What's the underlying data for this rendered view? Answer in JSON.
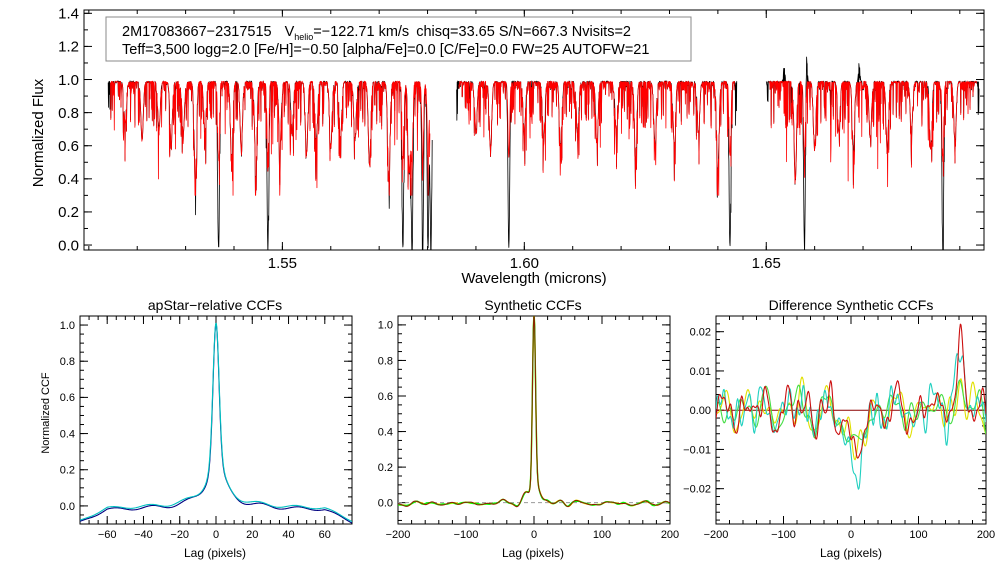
{
  "chart_data": [
    {
      "type": "line",
      "panel": "spectrum",
      "xlabel": "Wavelength (microns)",
      "ylabel": "Normalized Flux",
      "xlim": [
        1.509,
        1.695
      ],
      "ylim": [
        -0.03,
        1.42
      ],
      "xticks": [
        1.55,
        1.6,
        1.65
      ],
      "xtick_labels": [
        "1.55",
        "1.60",
        "1.65"
      ],
      "yticks": [
        0.0,
        0.2,
        0.4,
        0.6,
        0.8,
        1.0,
        1.2,
        1.4
      ],
      "ytick_labels": [
        "0.0",
        "0.2",
        "0.4",
        "0.6",
        "0.8",
        "1.0",
        "1.2",
        "1.4"
      ],
      "annotation_line1": {
        "star": "2M17083667−2317515",
        "v_label": "V",
        "v_sub": "helio",
        "v_value": "=−122.71 km/s",
        "rest": "chisq=33.65  S/N=667.3  Nvisits=2"
      },
      "annotation_line2": "Teff=3,500 logg=2.0 [Fe/H]=−0.50 [alpha/Fe]=0.0 [C/Fe]=0.0 FW=25 AUTOFW=21",
      "series": [
        {
          "name": "observed",
          "color": "#000000"
        },
        {
          "name": "model",
          "color": "#ff0000"
        }
      ],
      "chips": [
        [
          1.514,
          1.581
        ],
        [
          1.586,
          1.644
        ],
        [
          1.65,
          1.694
        ]
      ],
      "absorption_lines": [
        [
          1.5175,
          0.25
        ],
        [
          1.521,
          0.35
        ],
        [
          1.5245,
          0.28
        ],
        [
          1.527,
          0.38
        ],
        [
          1.5295,
          0.32
        ],
        [
          1.532,
          0.55
        ],
        [
          1.534,
          0.3
        ],
        [
          1.5368,
          1.0
        ],
        [
          1.5395,
          0.45
        ],
        [
          1.5415,
          0.4
        ],
        [
          1.5445,
          0.5
        ],
        [
          1.547,
          1.0
        ],
        [
          1.5495,
          0.38
        ],
        [
          1.552,
          0.3
        ],
        [
          1.555,
          0.42
        ],
        [
          1.557,
          0.35
        ],
        [
          1.56,
          0.4
        ],
        [
          1.562,
          0.34
        ],
        [
          1.565,
          0.35
        ],
        [
          1.568,
          0.5
        ],
        [
          1.572,
          0.58
        ],
        [
          1.5749,
          1.0
        ],
        [
          1.5762,
          0.55
        ],
        [
          1.5768,
          1.0
        ],
        [
          1.579,
          1.0
        ],
        [
          1.5801,
          1.0
        ],
        [
          1.5807,
          1.0
        ],
        [
          1.59,
          0.3
        ],
        [
          1.593,
          0.4
        ],
        [
          1.5968,
          1.0
        ],
        [
          1.6,
          0.3
        ],
        [
          1.604,
          0.34
        ],
        [
          1.6075,
          0.38
        ],
        [
          1.611,
          0.3
        ],
        [
          1.615,
          0.35
        ],
        [
          1.619,
          0.3
        ],
        [
          1.623,
          0.42
        ],
        [
          1.627,
          0.36
        ],
        [
          1.631,
          0.38
        ],
        [
          1.636,
          0.3
        ],
        [
          1.64,
          0.52
        ],
        [
          1.6425,
          1.0
        ],
        [
          1.656,
          0.58
        ],
        [
          1.6579,
          1.0
        ],
        [
          1.66,
          0.4
        ],
        [
          1.665,
          0.3
        ],
        [
          1.668,
          0.38
        ],
        [
          1.6715,
          0.34
        ],
        [
          1.675,
          0.4
        ],
        [
          1.68,
          0.3
        ],
        [
          1.684,
          0.4
        ],
        [
          1.6865,
          1.0
        ],
        [
          1.689,
          0.35
        ]
      ],
      "emission_spikes": [
        [
          1.6583,
          1.21
        ],
        [
          1.6692,
          1.12
        ],
        [
          1.6537,
          1.1
        ]
      ]
    },
    {
      "type": "line",
      "panel": "apstar-ccf",
      "title": "apStar−relative CCFs",
      "xlabel": "Lag (pixels)",
      "ylabel": "Normalized CCF",
      "xlim": [
        -75,
        75
      ],
      "ylim": [
        -0.1,
        1.05
      ],
      "xticks": [
        -60,
        -40,
        -20,
        0,
        20,
        40,
        60
      ],
      "xtick_labels": [
        "−60",
        "−40",
        "−20",
        "0",
        "20",
        "40",
        "60"
      ],
      "yticks": [
        0.0,
        0.2,
        0.4,
        0.6,
        0.8,
        1.0
      ],
      "ytick_labels": [
        "0.0",
        "0.2",
        "0.4",
        "0.6",
        "0.8",
        "1.0"
      ],
      "series": [
        {
          "name": "visit-1",
          "color": "#000080",
          "peak": 1.0,
          "width": 1.6,
          "wing_amp": 0.25,
          "wing_scale": 12,
          "ripple": 0.018,
          "offset": -0.01
        },
        {
          "name": "visit-2",
          "color": "#00c0c0",
          "peak": 0.99,
          "width": 1.65,
          "wing_amp": 0.25,
          "wing_scale": 12,
          "ripple": 0.016,
          "offset": -0.002
        }
      ]
    },
    {
      "type": "line",
      "panel": "synthetic-ccf",
      "title": "Synthetic CCFs",
      "xlabel": "Lag (pixels)",
      "xlim": [
        -200,
        200
      ],
      "ylim": [
        -0.12,
        1.05
      ],
      "xticks": [
        -200,
        -100,
        0,
        100,
        200
      ],
      "xtick_labels": [
        "−200",
        "−100",
        "0",
        "100",
        "200"
      ],
      "yticks": [
        0.0,
        0.2,
        0.4,
        0.6,
        0.8,
        1.0
      ],
      "ytick_labels": [
        "0.0",
        "0.2",
        "0.4",
        "0.6",
        "0.8",
        "1.0"
      ],
      "reference_line": 0.0,
      "series": [
        {
          "name": "model-1",
          "color": "#ffff00"
        },
        {
          "name": "model-2",
          "color": "#00ff00"
        },
        {
          "name": "model-3",
          "color": "#8b2500"
        }
      ]
    },
    {
      "type": "line",
      "panel": "difference-ccf",
      "title": "Difference Synthetic CCFs",
      "xlabel": "Lag (pixels)",
      "xlim": [
        -200,
        200
      ],
      "ylim": [
        -0.029,
        0.024
      ],
      "xticks": [
        -200,
        -100,
        0,
        100,
        200
      ],
      "xtick_labels": [
        "−200",
        "−100",
        "0",
        "100",
        "200"
      ],
      "yticks": [
        -0.02,
        -0.01,
        0.0,
        0.01,
        0.02
      ],
      "ytick_labels": [
        "−0.02",
        "−0.01",
        "0.00",
        "0.01",
        "0.02"
      ],
      "reference_line": 0.0,
      "series": [
        {
          "name": "diff-yellow",
          "color": "#e0e000",
          "seed": 3
        },
        {
          "name": "diff-green",
          "color": "#44dd44",
          "seed": 7
        },
        {
          "name": "diff-cyan",
          "color": "#20d0c0",
          "seed": 11
        },
        {
          "name": "diff-red",
          "color": "#cc1010",
          "seed": 17
        }
      ]
    }
  ]
}
